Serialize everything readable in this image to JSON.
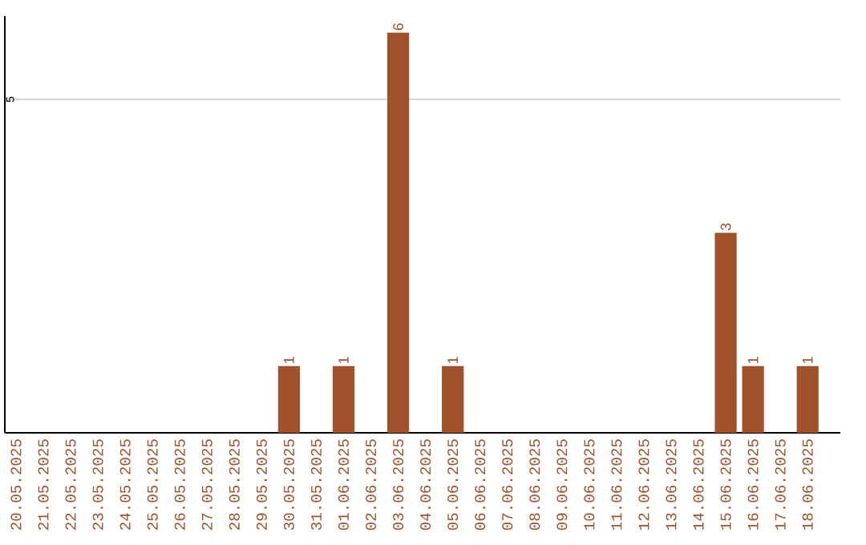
{
  "chart_data": {
    "type": "bar",
    "categories": [
      "20.05.2025",
      "21.05.2025",
      "22.05.2025",
      "23.05.2025",
      "24.05.2025",
      "25.05.2025",
      "26.05.2025",
      "27.05.2025",
      "28.05.2025",
      "29.05.2025",
      "30.05.2025",
      "31.05.2025",
      "01.06.2025",
      "02.06.2025",
      "03.06.2025",
      "04.06.2025",
      "05.06.2025",
      "06.06.2025",
      "07.06.2025",
      "08.06.2025",
      "09.06.2025",
      "10.06.2025",
      "11.06.2025",
      "12.06.2025",
      "13.06.2025",
      "14.06.2025",
      "15.06.2025",
      "16.06.2025",
      "17.06.2025",
      "18.06.2025"
    ],
    "values": [
      0,
      0,
      0,
      0,
      0,
      0,
      0,
      0,
      0,
      0,
      1,
      0,
      1,
      0,
      6,
      0,
      1,
      0,
      0,
      0,
      0,
      0,
      0,
      0,
      0,
      0,
      3,
      1,
      0,
      1
    ],
    "value_labels": [
      null,
      null,
      null,
      null,
      null,
      null,
      null,
      null,
      null,
      null,
      "1",
      null,
      "1",
      null,
      "6",
      null,
      "1",
      null,
      null,
      null,
      null,
      null,
      null,
      null,
      null,
      null,
      "3",
      "1",
      null,
      "1"
    ],
    "color": "#a0522d",
    "ylim": [
      0,
      6.25
    ],
    "yticks": [
      {
        "value": 0,
        "label": null
      },
      5
    ],
    "grid": "y"
  }
}
